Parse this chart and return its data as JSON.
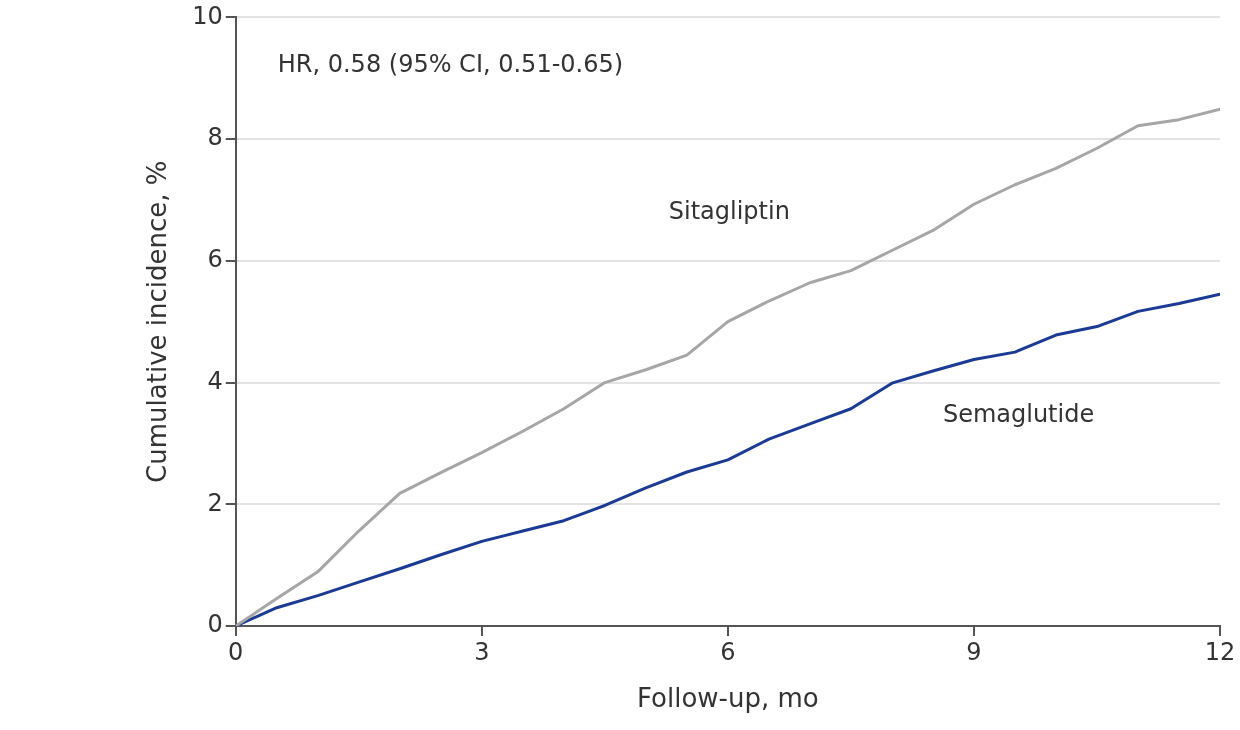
{
  "chart_data": {
    "type": "line",
    "xlabel": "Follow-up, mo",
    "ylabel": "Cumulative incidence, %",
    "annotations": [
      "HR, 0.58 (95% CI, 0.51-0.65)"
    ],
    "series": [
      {
        "name": "Sitagliptin",
        "color": "#a6a6a6",
        "x": [
          0,
          0.5,
          1,
          1.5,
          2,
          2.5,
          3,
          3.5,
          4,
          4.5,
          5,
          5.5,
          6,
          6.5,
          7,
          7.5,
          8,
          8.5,
          9,
          9.5,
          10,
          10.5,
          11,
          11.5,
          12
        ],
        "values": [
          0,
          0.45,
          0.89,
          1.56,
          2.18,
          2.52,
          2.85,
          3.2,
          3.57,
          4.0,
          4.21,
          4.45,
          5.0,
          5.34,
          5.64,
          5.84,
          6.17,
          6.5,
          6.93,
          7.25,
          7.52,
          7.85,
          8.22,
          8.32,
          8.49
        ]
      },
      {
        "name": "Semaglutide",
        "color": "#1a3a94",
        "x": [
          0,
          0.5,
          1,
          1.5,
          2,
          2.5,
          3,
          3.5,
          4,
          4.5,
          5,
          5.5,
          6,
          6.5,
          7,
          7.5,
          8,
          8.5,
          9,
          9.5,
          10,
          10.5,
          11,
          11.5,
          12
        ],
        "values": [
          0,
          0.3,
          0.5,
          0.72,
          0.94,
          1.17,
          1.39,
          1.56,
          1.73,
          1.98,
          2.27,
          2.53,
          2.73,
          3.07,
          3.32,
          3.57,
          3.99,
          4.19,
          4.38,
          4.5,
          4.78,
          4.92,
          5.17,
          5.3,
          5.45
        ]
      }
    ],
    "xlim": [
      0,
      12
    ],
    "xticks": [
      0,
      3,
      6,
      9,
      12
    ],
    "ylim": [
      0,
      10
    ],
    "yticks": [
      0,
      2,
      4,
      6,
      8,
      10
    ],
    "grid": "y",
    "legend": false,
    "marker": "none",
    "line_style": "solid"
  }
}
